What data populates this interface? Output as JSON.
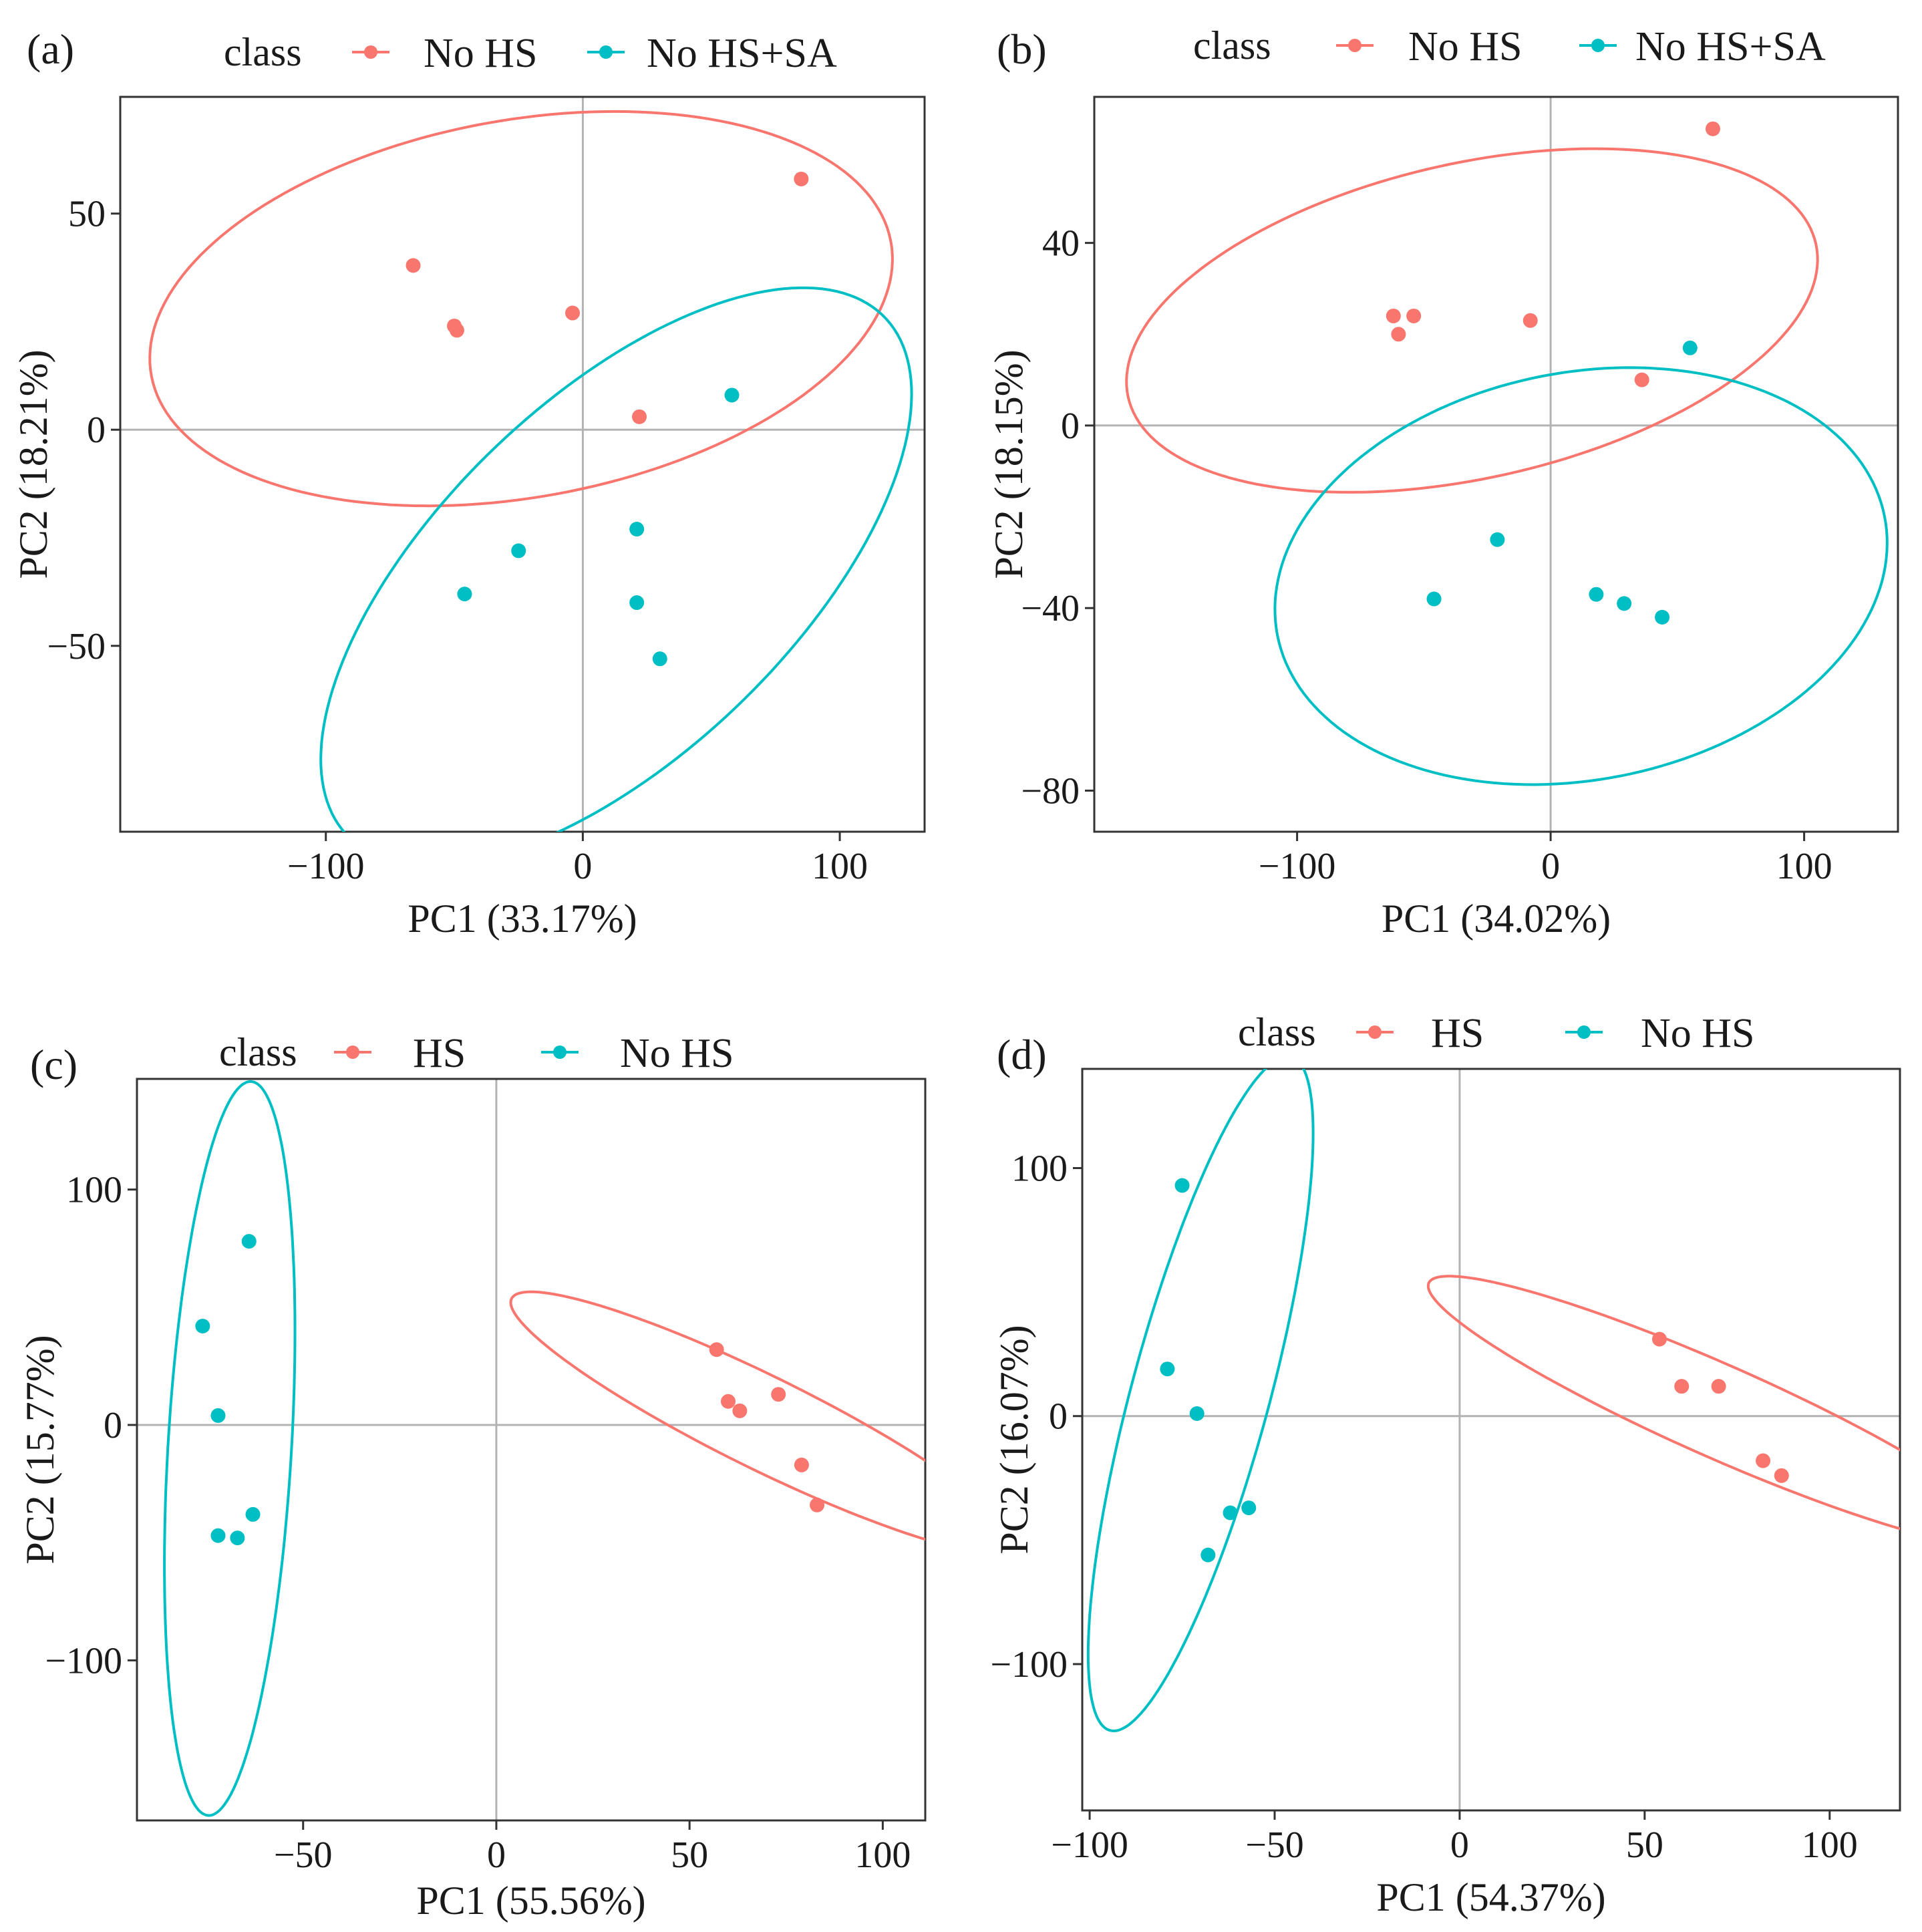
{
  "chart_data": [
    {
      "type": "scatter",
      "panel_label": "(a)",
      "legend_title": "class",
      "legend_entries": [
        "No HS",
        "No HS+SA"
      ],
      "xlabel": "PC1 (33.17%)",
      "ylabel": "PC2 (18.21%)",
      "xlim": [
        -180,
        133
      ],
      "ylim": [
        -93,
        77
      ],
      "xticks": [
        -100,
        0,
        100
      ],
      "yticks": [
        -50,
        0,
        50
      ],
      "xtick_labels": [
        "−100",
        "0",
        "100"
      ],
      "ytick_labels": [
        "−50",
        "0",
        "50"
      ],
      "series": [
        {
          "name": "No HS",
          "color": "#f8766d",
          "points": [
            [
              -66,
              38
            ],
            [
              -50,
              24
            ],
            [
              -49,
              23
            ],
            [
              -4,
              27
            ],
            [
              85,
              58
            ],
            [
              22,
              3
            ]
          ],
          "ellipse": {
            "cx": -24,
            "cy": 28,
            "rx": 145,
            "ry": 44,
            "angle": 5
          }
        },
        {
          "name": "No HS+SA",
          "color": "#00bfc4",
          "points": [
            [
              58,
              8
            ],
            [
              -25,
              -28
            ],
            [
              21,
              -23
            ],
            [
              -46,
              -38
            ],
            [
              21,
              -40
            ],
            [
              30,
              -53
            ]
          ],
          "ellipse": {
            "cx": 13,
            "cy": -34,
            "rx": 124,
            "ry": 48,
            "angle": 24
          }
        }
      ]
    },
    {
      "type": "scatter",
      "panel_label": "(b)",
      "legend_title": "class",
      "legend_entries": [
        "No HS",
        "No HS+SA"
      ],
      "xlabel": "PC1 (34.02%)",
      "ylabel": "PC2 (18.15%)",
      "xlim": [
        -180,
        137
      ],
      "ylim": [
        -89,
        72
      ],
      "xticks": [
        -100,
        0,
        100
      ],
      "yticks": [
        -80,
        -40,
        0,
        40
      ],
      "xtick_labels": [
        "−100",
        "0",
        "100"
      ],
      "ytick_labels": [
        "−80",
        "−40",
        "0",
        "40"
      ],
      "series": [
        {
          "name": "No HS",
          "color": "#f8766d",
          "points": [
            [
              -62,
              24
            ],
            [
              -54,
              24
            ],
            [
              -60,
              20
            ],
            [
              -8,
              23
            ],
            [
              64,
              65
            ],
            [
              36,
              10
            ]
          ],
          "ellipse": {
            "cx": -31,
            "cy": 23,
            "rx": 137,
            "ry": 35,
            "angle": 6
          }
        },
        {
          "name": "No HS+SA",
          "color": "#00bfc4",
          "points": [
            [
              55,
              17
            ],
            [
              -21,
              -25
            ],
            [
              -46,
              -38
            ],
            [
              18,
              -37
            ],
            [
              29,
              -39
            ],
            [
              44,
              -42
            ]
          ],
          "ellipse": {
            "cx": 12,
            "cy": -33,
            "rx": 121,
            "ry": 45,
            "angle": 4
          }
        }
      ]
    },
    {
      "type": "scatter",
      "panel_label": "(c)",
      "legend_title": "class",
      "legend_entries": [
        "HS",
        "No HS"
      ],
      "xlabel": "PC1 (55.56%)",
      "ylabel": "PC2 (15.77%)",
      "xlim": [
        -93,
        111
      ],
      "ylim": [
        -168,
        147
      ],
      "xticks": [
        -50,
        0,
        50,
        100
      ],
      "yticks": [
        -100,
        0,
        100
      ],
      "xtick_labels": [
        "−50",
        "0",
        "50",
        "100"
      ],
      "ytick_labels": [
        "−100",
        "0",
        "100"
      ],
      "series": [
        {
          "name": "HS",
          "color": "#f8766d",
          "points": [
            [
              57,
              32
            ],
            [
              60,
              10
            ],
            [
              63,
              6
            ],
            [
              73,
              13
            ],
            [
              79,
              -17
            ],
            [
              83,
              -34
            ]
          ],
          "ellipse": {
            "cx": 69,
            "cy": 1,
            "rx": 84,
            "ry": 17,
            "angle": -40
          }
        },
        {
          "name": "No HS",
          "color": "#00bfc4",
          "points": [
            [
              -64,
              78
            ],
            [
              -76,
              42
            ],
            [
              -72,
              4
            ],
            [
              -63,
              -38
            ],
            [
              -72,
              -47
            ],
            [
              -67,
              -48
            ]
          ],
          "ellipse": {
            "cx": -69,
            "cy": -10,
            "rx": 156,
            "ry": 16,
            "angle": 88
          }
        }
      ]
    },
    {
      "type": "scatter",
      "panel_label": "(d)",
      "legend_title": "class",
      "legend_entries": [
        "HS",
        "No HS"
      ],
      "xlabel": "PC1 (54.37%)",
      "ylabel": "PC2 (16.07%)",
      "xlim": [
        -102,
        119
      ],
      "ylim": [
        -159,
        140
      ],
      "xticks": [
        -100,
        -50,
        0,
        50,
        100
      ],
      "yticks": [
        -100,
        0,
        100
      ],
      "xtick_labels": [
        "−100",
        "−50",
        "0",
        "50",
        "100"
      ],
      "ytick_labels": [
        "−100",
        "0",
        "100"
      ],
      "series": [
        {
          "name": "HS",
          "color": "#f8766d",
          "points": [
            [
              54,
              31
            ],
            [
              60,
              12
            ],
            [
              70,
              12
            ],
            [
              82,
              -18
            ],
            [
              87,
              -24
            ]
          ],
          "ellipse": {
            "cx": 70,
            "cy": 2,
            "rx": 94,
            "ry": 17,
            "angle": -34
          }
        },
        {
          "name": "No HS",
          "color": "#00bfc4",
          "points": [
            [
              -75,
              93
            ],
            [
              -79,
              19
            ],
            [
              -71,
              1
            ],
            [
              -62,
              -39
            ],
            [
              -57,
              -37
            ],
            [
              -68,
              -56
            ]
          ],
          "ellipse": {
            "cx": -70,
            "cy": 9,
            "rx": 138,
            "ry": 19,
            "angle": 80
          }
        }
      ]
    }
  ]
}
